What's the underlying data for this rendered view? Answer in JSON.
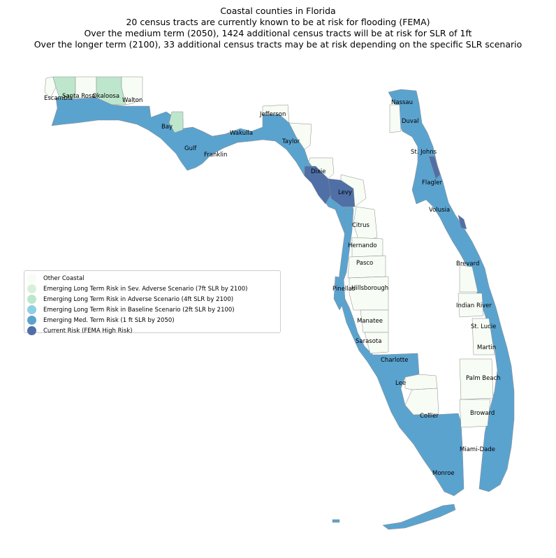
{
  "title": {
    "line1": "Coastal counties in Florida",
    "line2": "20 census tracts are currently known to be at risk for flooding (FEMA)",
    "line3": "Over the medium term (2050), 1424 additional census tracts will be at risk for SLR of 1ft",
    "line4": "Over the longer term (2100), 33 additional census tracts may be at risk depending on the specific SLR scenario"
  },
  "colors": {
    "other_coastal": "#f7fcf5",
    "sev_adverse_7ft": "#d8f0d8",
    "adverse_4ft": "#bde6cd",
    "baseline_2ft": "#8fcfe5",
    "med_term_1ft": "#5ba3cf",
    "current_risk": "#4f6fa6",
    "tract_border": "#8a8a8a"
  },
  "legend": {
    "items": [
      {
        "label": "Other Coastal",
        "color": "#f7fcf5"
      },
      {
        "label": "Emerging Long Term Risk in Sev. Adverse Scenario (7ft SLR by 2100)",
        "color": "#d8f0d8"
      },
      {
        "label": "Emerging Long Term Risk in Adverse Scenario (4ft SLR by 2100)",
        "color": "#bde6cd"
      },
      {
        "label": "Emerging Long Term Risk in Baseline Scenario (2ft SLR by 2100)",
        "color": "#8fcfe5"
      },
      {
        "label": "Emerging Med. Term Risk (1 ft SLR by 2050)",
        "color": "#5ba3cf"
      },
      {
        "label": "Current Risk (FEMA High Risk)",
        "color": "#4f6fa6"
      }
    ]
  },
  "counties": {
    "escambia": "Escambia",
    "santa_rosa": "Santa Rosa",
    "okaloosa": "Okaloosa",
    "walton": "Walton",
    "bay": "Bay",
    "gulf": "Gulf",
    "franklin": "Franklin",
    "wakulla": "Wakulla",
    "jefferson": "Jefferson",
    "taylor": "Taylor",
    "dixie": "Dixie",
    "levy": "Levy",
    "citrus": "Citrus",
    "hernando": "Hernando",
    "pasco": "Pasco",
    "pinellas": "Pinellas",
    "hillsborough": "Hillsborough",
    "manatee": "Manatee",
    "sarasota": "Sarasota",
    "charlotte": "Charlotte",
    "lee": "Lee",
    "collier": "Collier",
    "monroe": "Monroe",
    "miami_dade": "Miami-Dade",
    "broward": "Broward",
    "palm_beach": "Palm Beach",
    "martin": "Martin",
    "st_lucie": "St. Lucie",
    "indian_river": "Indian River",
    "brevard": "Brevard",
    "volusia": "Volusia",
    "flagler": "Flagler",
    "st_johns": "St. Johns",
    "duval": "Duval",
    "nassau": "Nassau"
  }
}
